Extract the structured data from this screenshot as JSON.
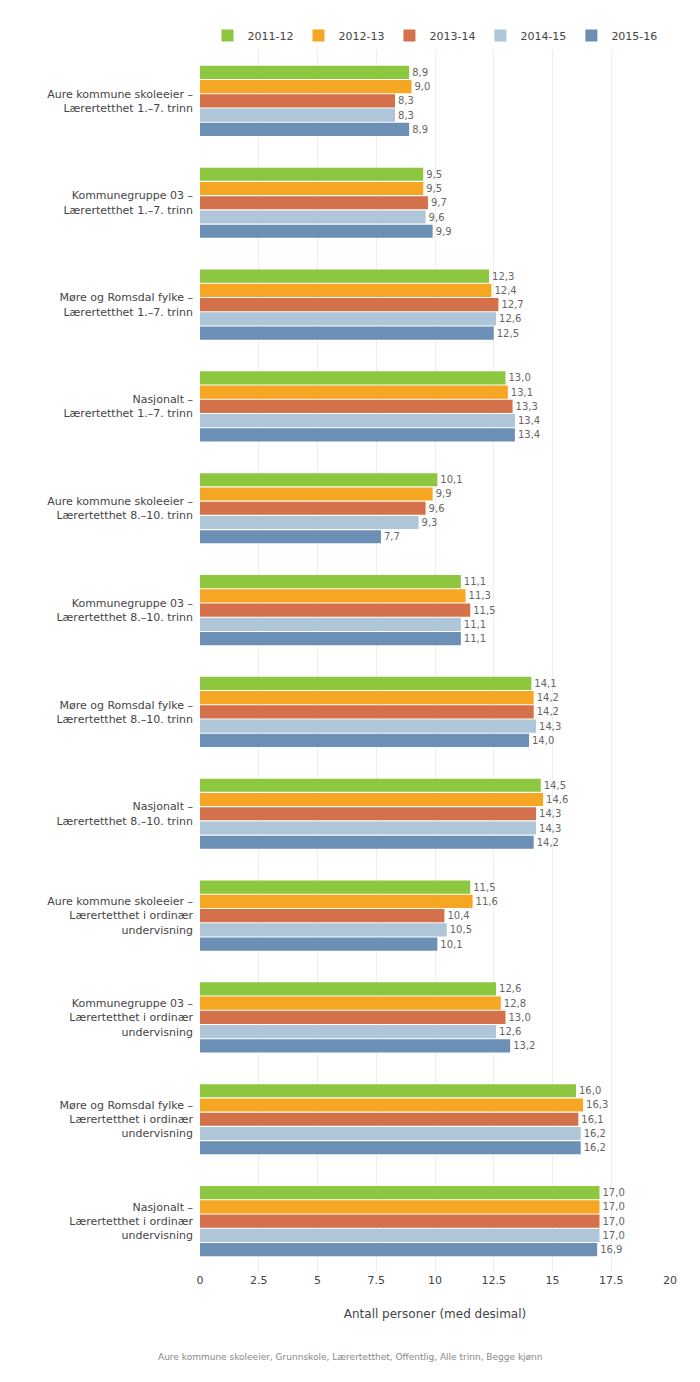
{
  "chart_data": {
    "type": "bar",
    "orientation": "horizontal",
    "xlabel": "Antall personer (med desimal)",
    "annotations": [
      "Aure kommune skoleeier, Grunnskole, Lærertetthet, Offentlig, Alle trinn, Begge kjønn"
    ],
    "categories": [
      "Aure kommune skoleeier –\nLærertetthet 1.–7. trinn",
      "Kommunegruppe 03 –\nLærertetthet 1.–7. trinn",
      "Møre og Romsdal fylke –\nLærertetthet 1.–7. trinn",
      "Nasjonalt –\nLærertetthet 1.–7. trinn",
      "Aure kommune skoleeier –\nLærertetthet 8.–10. trinn",
      "Kommunegruppe 03 –\nLærertetthet 8.–10. trinn",
      "Møre og Romsdal fylke –\nLærertetthet 8.–10. trinn",
      "Nasjonalt –\nLærertetthet 8.–10. trinn",
      "Aure kommune skoleeier –\nLærertetthet i ordinær\nundervisning",
      "Kommunegruppe 03 –\nLærertetthet i ordinær\nundervisning",
      "Møre og Romsdal fylke –\nLærertetthet i ordinær\nundervisning",
      "Nasjonalt –\nLærertetthet i ordinær\nundervisning"
    ],
    "series": [
      {
        "name": "2011-12",
        "color": "#8dc63f",
        "values": [
          8.9,
          9.5,
          12.3,
          13.0,
          10.1,
          11.1,
          14.1,
          14.5,
          11.5,
          12.6,
          16.0,
          17.0
        ],
        "value_labels": [
          "8,9",
          "9,5",
          "12,3",
          "13,0",
          "10,1",
          "11,1",
          "14,1",
          "14,5",
          "11,5",
          "12,6",
          "16,0",
          "17,0"
        ]
      },
      {
        "name": "2012-13",
        "color": "#f5a623",
        "values": [
          9.0,
          9.5,
          12.4,
          13.1,
          9.9,
          11.3,
          14.2,
          14.6,
          11.6,
          12.8,
          16.3,
          17.0
        ],
        "value_labels": [
          "9,0",
          "9,5",
          "12,4",
          "13,1",
          "9,9",
          "11,3",
          "14,2",
          "14,6",
          "11,6",
          "12,8",
          "16,3",
          "17,0"
        ]
      },
      {
        "name": "2013-14",
        "color": "#d4714a",
        "values": [
          8.3,
          9.7,
          12.7,
          13.3,
          9.6,
          11.5,
          14.2,
          14.3,
          10.4,
          13.0,
          16.1,
          17.0
        ],
        "value_labels": [
          "8,3",
          "9,7",
          "12,7",
          "13,3",
          "9,6",
          "11,5",
          "14,2",
          "14,3",
          "10,4",
          "13,0",
          "16,1",
          "17,0"
        ]
      },
      {
        "name": "2014-15",
        "color": "#aec6d8",
        "values": [
          8.3,
          9.6,
          12.6,
          13.4,
          9.3,
          11.1,
          14.3,
          14.3,
          10.5,
          12.6,
          16.2,
          17.0
        ],
        "value_labels": [
          "8,3",
          "9,6",
          "12,6",
          "13,4",
          "9,3",
          "11,1",
          "14,3",
          "14,3",
          "10,5",
          "12,6",
          "16,2",
          "17,0"
        ]
      },
      {
        "name": "2015-16",
        "color": "#6b8fb5",
        "values": [
          8.9,
          9.9,
          12.5,
          13.4,
          7.7,
          11.1,
          14.0,
          14.2,
          10.1,
          13.2,
          16.2,
          16.9
        ],
        "value_labels": [
          "8,9",
          "9,9",
          "12,5",
          "13,4",
          "7,7",
          "11,1",
          "14,0",
          "14,2",
          "10,1",
          "13,2",
          "16,2",
          "16,9"
        ]
      }
    ],
    "xlim": [
      0,
      20
    ],
    "xticks": [
      0,
      2.5,
      5,
      7.5,
      10,
      12.5,
      15,
      17.5,
      20
    ],
    "grid": true,
    "legend": "top",
    "data_labels": true
  }
}
